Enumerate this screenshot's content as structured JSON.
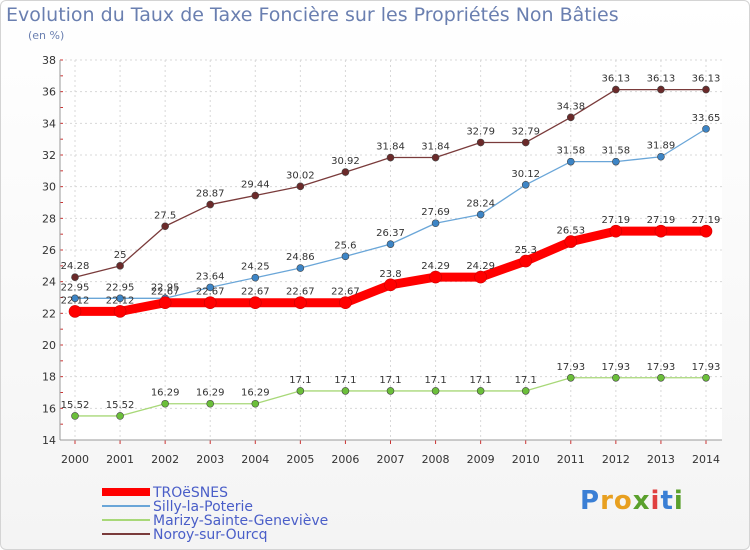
{
  "title": "Evolution du Taux de Taxe Foncière sur les Propriétés Non Bâties",
  "unit_label": "(en %)",
  "logo": {
    "parts": [
      "P",
      "r",
      "o",
      "x",
      "i",
      "t",
      "i"
    ],
    "colors": [
      "#3a7fd5",
      "#e8a020",
      "#e8a020",
      "#5aa02c",
      "#e04040",
      "#3a7fd5",
      "#5aa02c"
    ]
  },
  "chart_data": {
    "type": "line",
    "title": "Evolution du Taux de Taxe Foncière sur les Propriétés Non Bâties",
    "ylabel": "(en %)",
    "xlabel": "",
    "x": [
      2000,
      2001,
      2002,
      2003,
      2004,
      2005,
      2006,
      2007,
      2008,
      2009,
      2010,
      2011,
      2012,
      2013,
      2014
    ],
    "ylim": [
      14,
      38
    ],
    "yticks": [
      14,
      16,
      18,
      20,
      22,
      24,
      26,
      28,
      30,
      32,
      34,
      36,
      38
    ],
    "grid": true,
    "legend": "bottom-left",
    "series": [
      {
        "name": "TROëSNES",
        "color": "#ff0000",
        "point_color": "#ff0000",
        "values": [
          22.12,
          22.12,
          22.67,
          22.67,
          22.67,
          22.67,
          22.67,
          23.8,
          24.29,
          24.29,
          25.3,
          26.53,
          27.19,
          27.19,
          27.19
        ],
        "labels": [
          "22.12",
          "22.12",
          "22.67",
          "22.67",
          "22.67",
          "22.67",
          "22.67",
          "23.8",
          "24.29",
          "24.29",
          "25.3",
          "26.53",
          "27.19",
          "27.19",
          "27.19"
        ]
      },
      {
        "name": "Silly-la-Poterie",
        "color": "#6aa6d8",
        "point_color": "#3d85c6",
        "values": [
          22.95,
          22.95,
          22.95,
          23.64,
          24.25,
          24.86,
          25.6,
          26.37,
          27.69,
          28.24,
          30.12,
          31.58,
          31.58,
          31.89,
          33.65
        ],
        "labels": [
          "22.95",
          "22.95",
          "22.95",
          "23.64",
          "24.25",
          "24.86",
          "25.6",
          "26.37",
          "27.69",
          "28.24",
          "30.12",
          "31.58",
          "31.58",
          "31.89",
          "33.65"
        ]
      },
      {
        "name": "Marizy-Sainte-Geneviève",
        "color": "#a8d878",
        "point_color": "#6bbf3a",
        "values": [
          15.52,
          15.52,
          16.29,
          16.29,
          16.29,
          17.1,
          17.1,
          17.1,
          17.1,
          17.1,
          17.1,
          17.93,
          17.93,
          17.93,
          17.93
        ],
        "labels": [
          "15.52",
          "15.52",
          "16.29",
          "16.29",
          "16.29",
          "17.1",
          "17.1",
          "17.1",
          "17.1",
          "17.1",
          "17.1",
          "17.93",
          "17.93",
          "17.93",
          "17.93"
        ]
      },
      {
        "name": "Noroy-sur-Ourcq",
        "color": "#7a3b3b",
        "point_color": "#6b2a2a",
        "values": [
          24.28,
          25,
          27.5,
          28.87,
          29.44,
          30.02,
          30.92,
          31.84,
          31.84,
          32.79,
          32.79,
          34.38,
          36.13,
          36.13,
          36.13
        ],
        "labels": [
          "24.28",
          "25",
          "27.5",
          "28.87",
          "29.44",
          "30.02",
          "30.92",
          "31.84",
          "31.84",
          "32.79",
          "32.79",
          "34.38",
          "36.13",
          "36.13",
          "36.13"
        ]
      }
    ]
  }
}
